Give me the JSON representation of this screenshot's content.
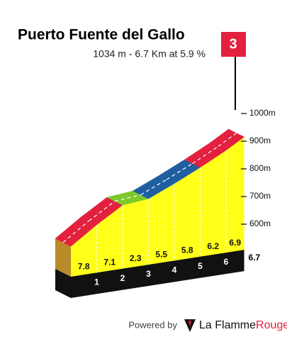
{
  "chart_data": {
    "type": "climb-profile",
    "title": "Puerto Fuente del Gallo",
    "subtitle": "1034 m - 6.7 Km at 5.9 %",
    "category": "3",
    "xlim": [
      0,
      6.7
    ],
    "xticks": [
      1,
      2,
      3,
      4,
      5,
      6
    ],
    "ylim": [
      520,
      1040
    ],
    "yticks": [
      {
        "value": 600,
        "label": "600m"
      },
      {
        "value": 700,
        "label": "700m"
      },
      {
        "value": 800,
        "label": "800m"
      },
      {
        "value": 900,
        "label": "900m"
      },
      {
        "value": 1000,
        "label": "1000m"
      }
    ],
    "values": [
      7.8,
      7.1,
      2.3,
      5.5,
      5.8,
      6.2,
      6.9
    ],
    "colors": [
      "#e3203e",
      "#e3203e",
      "#7dc82a",
      "#1f5fa0",
      "#1f5fa0",
      "#e3203e",
      "#e3203e"
    ],
    "footer": {
      "powered_by": "Powered by",
      "brand_1": "La Flamme",
      "brand_2": "Rouge"
    }
  }
}
